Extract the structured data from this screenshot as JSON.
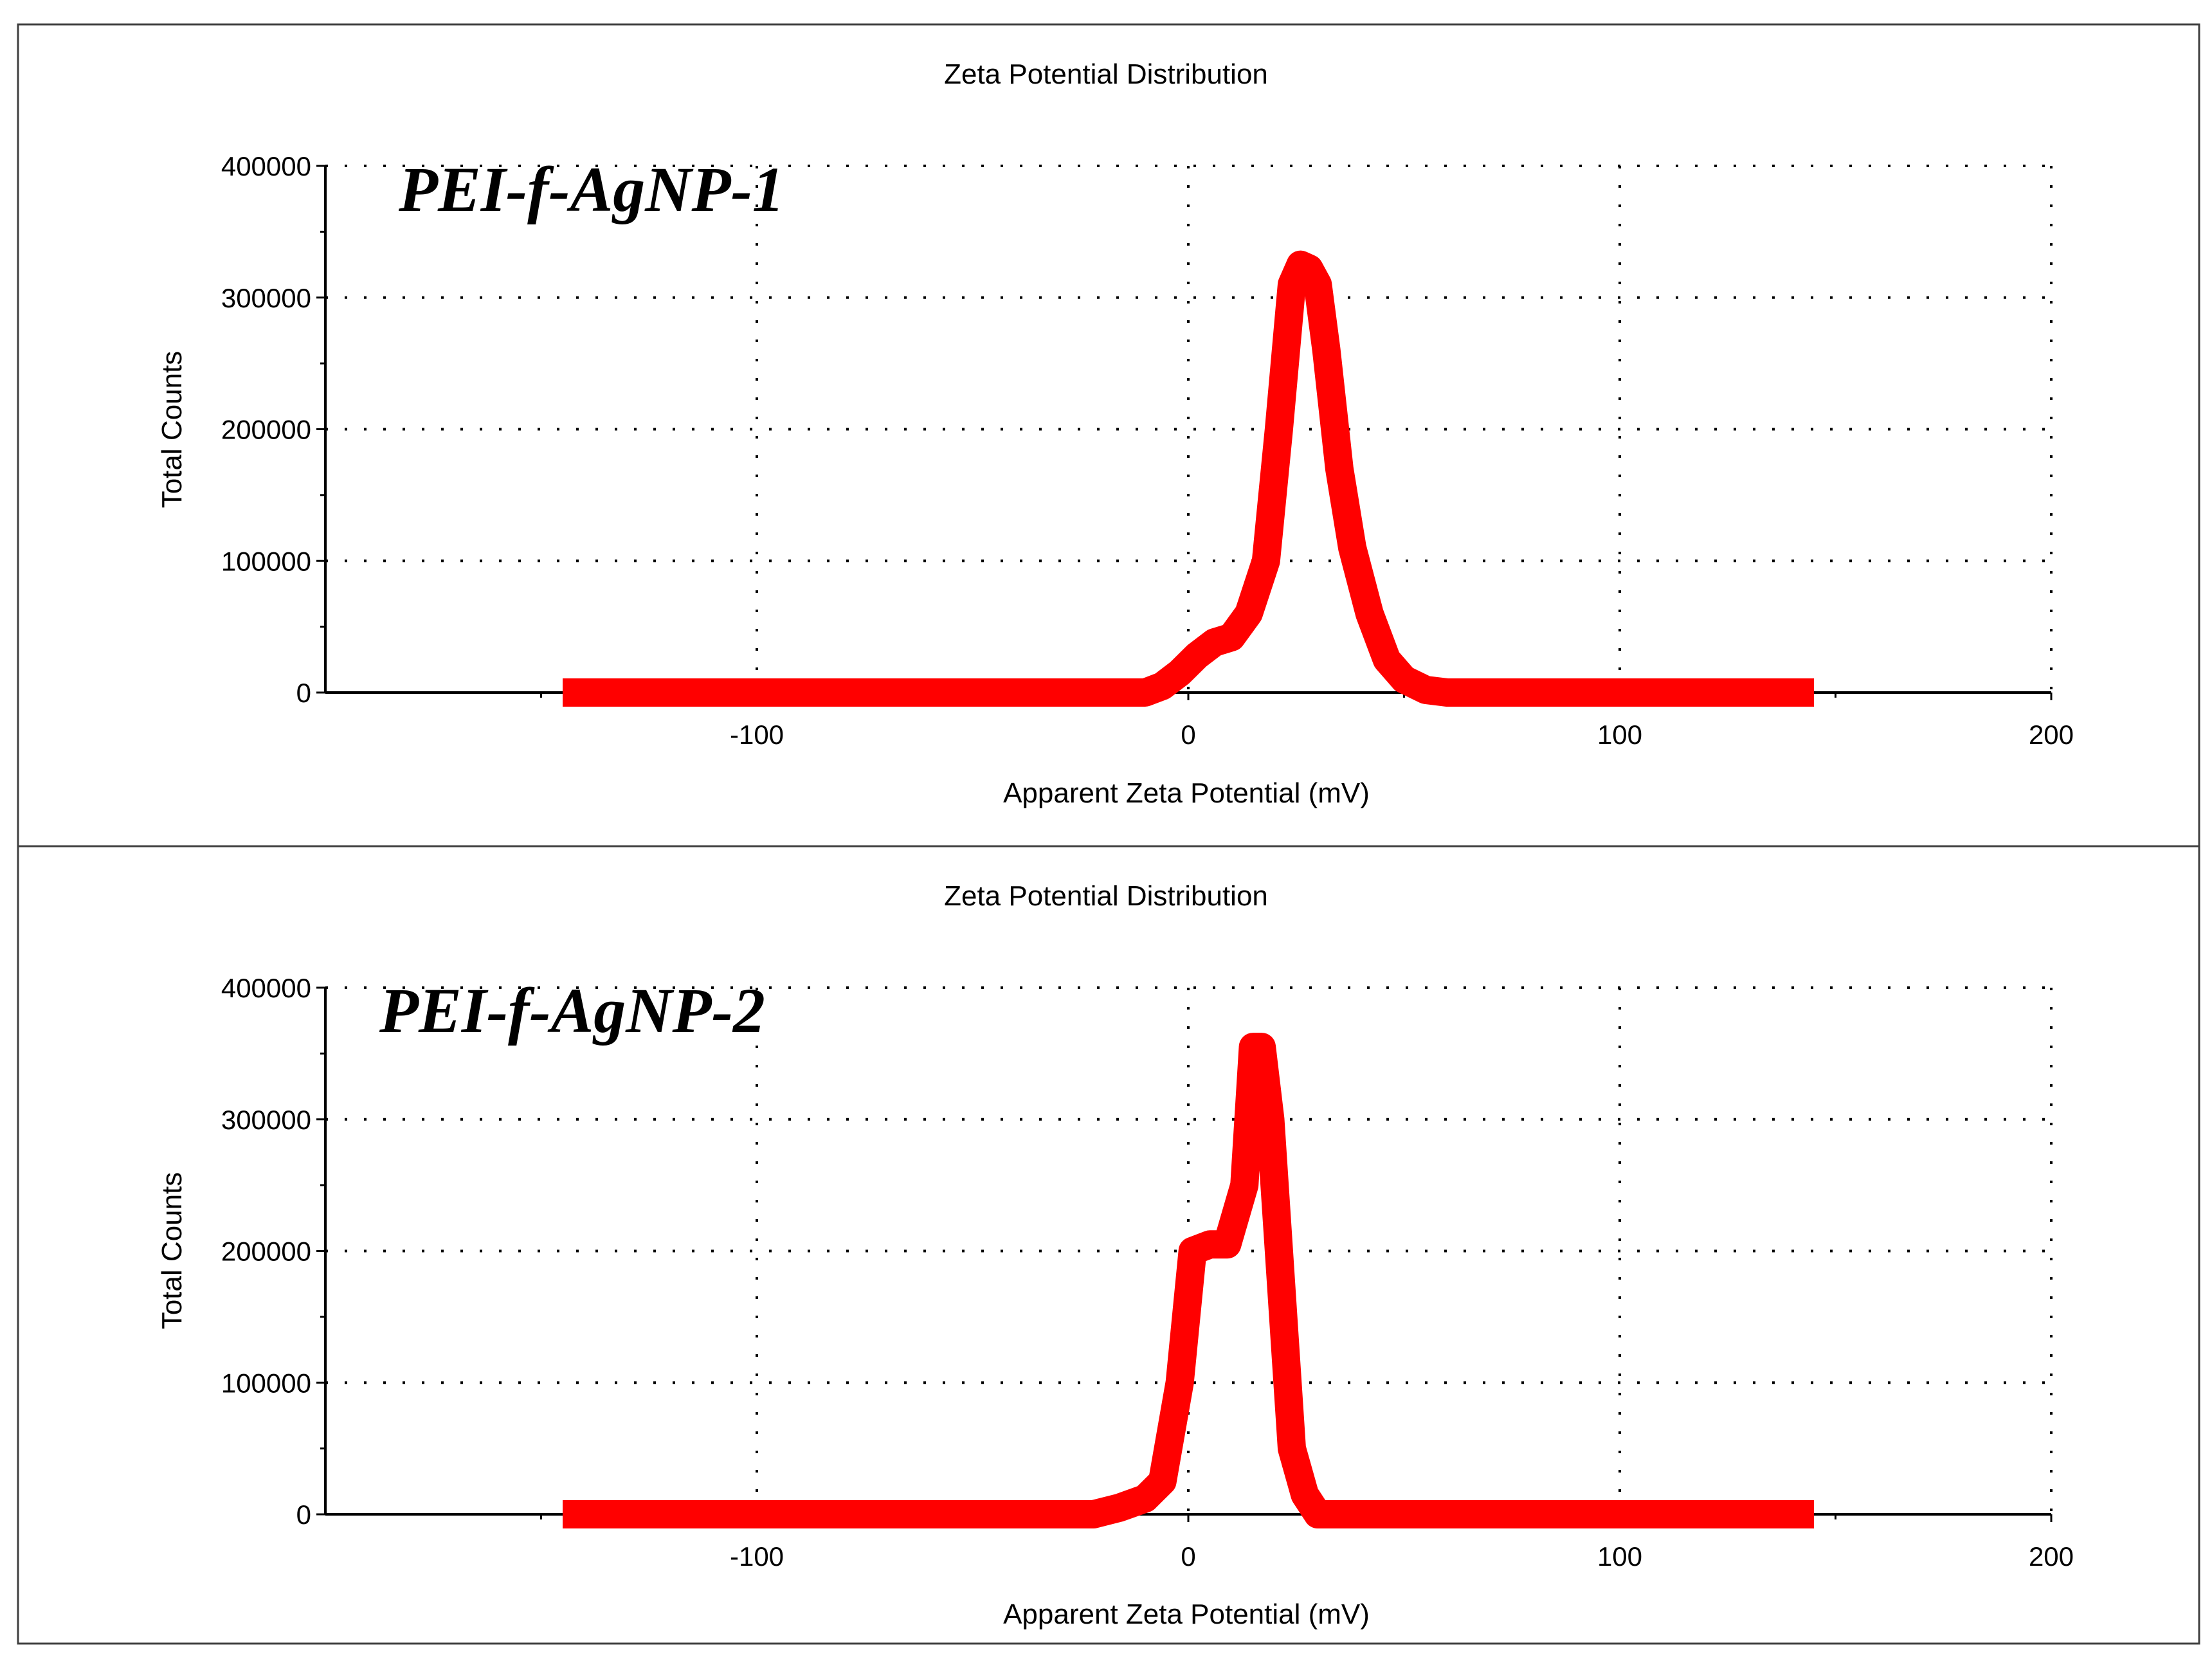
{
  "chart_data": [
    {
      "type": "line",
      "title": "Zeta Potential Distribution",
      "annotation": "PEI-f-AgNP-1",
      "xlabel": "Apparent Zeta Potential (mV)",
      "ylabel": "Total Counts",
      "xlim": [
        -200,
        200
      ],
      "ylim": [
        0,
        400000
      ],
      "x_ticks": [
        -100,
        0,
        100,
        200
      ],
      "y_ticks": [
        0,
        100000,
        200000,
        300000,
        400000
      ],
      "grid": true,
      "series": [
        {
          "name": "PEI-f-AgNP-1",
          "color": "#ff0000",
          "x": [
            -145,
            -100,
            -50,
            -10,
            -6,
            -2,
            2,
            6,
            10,
            14,
            18,
            21,
            24,
            26,
            28,
            30,
            32,
            35,
            38,
            42,
            46,
            50,
            55,
            60,
            70,
            100,
            145
          ],
          "y": [
            0,
            0,
            0,
            0,
            5000,
            15000,
            28000,
            38000,
            42000,
            60000,
            100000,
            200000,
            310000,
            325000,
            322000,
            310000,
            260000,
            170000,
            110000,
            60000,
            25000,
            10000,
            2000,
            0,
            0,
            0,
            0
          ]
        }
      ]
    },
    {
      "type": "line",
      "title": "Zeta Potential Distribution",
      "annotation": "PEI-f-AgNP-2",
      "xlabel": "Apparent Zeta Potential (mV)",
      "ylabel": "Total Counts",
      "xlim": [
        -200,
        200
      ],
      "ylim": [
        0,
        400000
      ],
      "x_ticks": [
        -100,
        0,
        100,
        200
      ],
      "y_ticks": [
        0,
        100000,
        200000,
        300000,
        400000
      ],
      "grid": true,
      "series": [
        {
          "name": "PEI-f-AgNP-2",
          "color": "#ff0000",
          "x": [
            -145,
            -100,
            -50,
            -22,
            -16,
            -10,
            -6,
            -2,
            1,
            5,
            9,
            13,
            15,
            17,
            19,
            21,
            24,
            27,
            30,
            33,
            40,
            100,
            145
          ],
          "y": [
            0,
            0,
            0,
            0,
            5000,
            12000,
            25000,
            100000,
            200000,
            205000,
            205000,
            250000,
            355000,
            355000,
            300000,
            200000,
            50000,
            15000,
            0,
            0,
            0,
            0,
            0
          ]
        }
      ]
    }
  ]
}
